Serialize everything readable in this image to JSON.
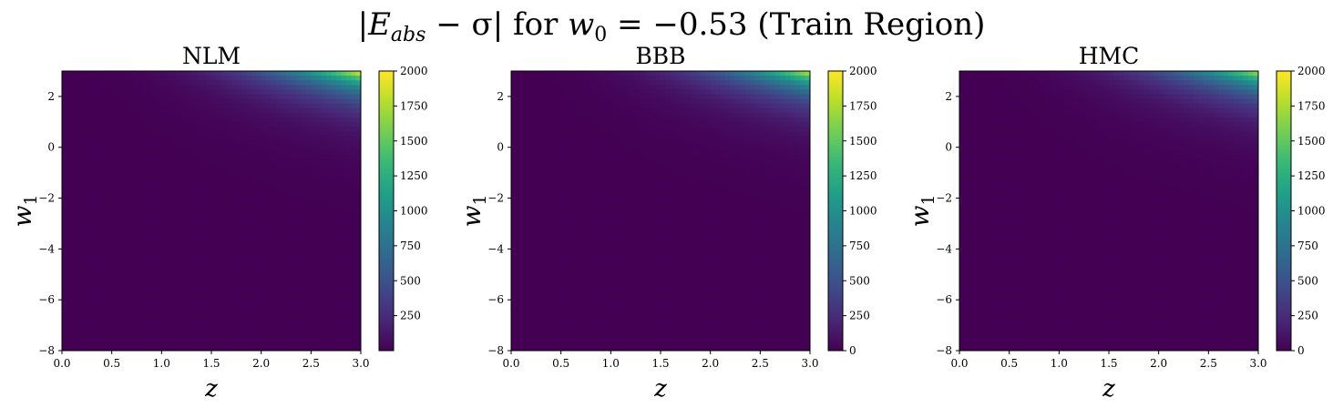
{
  "figure": {
    "suptitle": "|E_abs − σ| for w_0 = −0.53 (Train Region)",
    "suptitle_parts": {
      "open_bar": "|",
      "E": "E",
      "E_sub": "abs",
      "minus_sigma": " − σ|",
      "for": " for ",
      "w": "w",
      "w_sub": "0",
      "value": " = −0.53",
      "region": " (Train Region)"
    }
  },
  "chart_data": [
    {
      "type": "heatmap",
      "title": "NLM",
      "xlabel": "z",
      "ylabel": {
        "base": "w",
        "sub": "1"
      },
      "xlim": [
        0.0,
        3.0
      ],
      "ylim": [
        -8,
        3
      ],
      "xticks": [
        "0.0",
        "0.5",
        "1.0",
        "1.5",
        "2.0",
        "2.5",
        "3.0"
      ],
      "yticks": [
        "−8",
        "−6",
        "−4",
        "−2",
        "0",
        "2"
      ],
      "ytick_values": [
        -8,
        -6,
        -4,
        -2,
        0,
        2
      ],
      "xtick_values": [
        0.0,
        0.5,
        1.0,
        1.5,
        2.0,
        2.5,
        3.0
      ],
      "colorbar": {
        "min": 0,
        "max": 2000,
        "ticks": [
          "250",
          "500",
          "750",
          "1000",
          "1250",
          "1500",
          "1750",
          "2000"
        ],
        "tick_values": [
          250,
          500,
          750,
          1000,
          1250,
          1500,
          1750,
          2000
        ]
      },
      "max_value": 2000,
      "colormap": "viridis",
      "hotspot": "top-right"
    },
    {
      "type": "heatmap",
      "title": "BBB",
      "xlabel": "z",
      "ylabel": {
        "base": "w",
        "sub": "1"
      },
      "xlim": [
        0.0,
        3.0
      ],
      "ylim": [
        -8,
        3
      ],
      "xticks": [
        "0.0",
        "0.5",
        "1.0",
        "1.5",
        "2.0",
        "2.5",
        "3.0"
      ],
      "yticks": [
        "−8",
        "−6",
        "−4",
        "−2",
        "0",
        "2"
      ],
      "ytick_values": [
        -8,
        -6,
        -4,
        -2,
        0,
        2
      ],
      "xtick_values": [
        0.0,
        0.5,
        1.0,
        1.5,
        2.0,
        2.5,
        3.0
      ],
      "colorbar": {
        "min": 0,
        "max": 2000,
        "ticks": [
          "0",
          "250",
          "500",
          "750",
          "1000",
          "1250",
          "1500",
          "1750",
          "2000"
        ],
        "tick_values": [
          0,
          250,
          500,
          750,
          1000,
          1250,
          1500,
          1750,
          2000
        ]
      },
      "max_value": 1900,
      "colormap": "viridis",
      "hotspot": "top-right"
    },
    {
      "type": "heatmap",
      "title": "HMC",
      "xlabel": "z",
      "ylabel": {
        "base": "w",
        "sub": "1"
      },
      "xlim": [
        0.0,
        3.0
      ],
      "ylim": [
        -8,
        3
      ],
      "xticks": [
        "0.0",
        "0.5",
        "1.0",
        "1.5",
        "2.0",
        "2.5",
        "3.0"
      ],
      "yticks": [
        "−8",
        "−6",
        "−4",
        "−2",
        "0",
        "2"
      ],
      "ytick_values": [
        -8,
        -6,
        -4,
        -2,
        0,
        2
      ],
      "xtick_values": [
        0.0,
        0.5,
        1.0,
        1.5,
        2.0,
        2.5,
        3.0
      ],
      "colorbar": {
        "min": 0,
        "max": 2000,
        "ticks": [
          "0",
          "250",
          "500",
          "750",
          "1000",
          "1250",
          "1500",
          "1750",
          "2000"
        ],
        "tick_values": [
          0,
          250,
          500,
          750,
          1000,
          1250,
          1500,
          1750,
          2000
        ]
      },
      "max_value": 1800,
      "colormap": "viridis",
      "hotspot": "top-right"
    }
  ]
}
